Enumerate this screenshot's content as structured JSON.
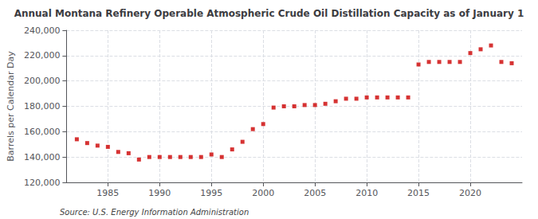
{
  "chart_data": {
    "type": "scatter",
    "title": "Annual Montana Refinery Operable Atmospheric Crude Oil Distillation Capacity as of January 1",
    "ylabel": "Barrels per Calendar Day",
    "annotations": [
      "Source: U.S. Energy Information Administration"
    ],
    "x": [
      1982,
      1983,
      1984,
      1985,
      1986,
      1987,
      1988,
      1989,
      1990,
      1991,
      1992,
      1993,
      1994,
      1995,
      1996,
      1997,
      1998,
      1999,
      2000,
      2001,
      2002,
      2003,
      2004,
      2005,
      2006,
      2007,
      2008,
      2009,
      2010,
      2011,
      2012,
      2013,
      2014,
      2015,
      2016,
      2017,
      2018,
      2019,
      2020,
      2021,
      2022,
      2023,
      2024
    ],
    "values": [
      154000,
      151000,
      149000,
      148000,
      144000,
      143000,
      138000,
      140000,
      140000,
      140000,
      140000,
      140000,
      140000,
      142000,
      140000,
      146000,
      152000,
      162000,
      166000,
      179000,
      180000,
      180000,
      181000,
      181000,
      182000,
      184000,
      186000,
      186000,
      187000,
      187000,
      187000,
      187000,
      187000,
      213000,
      215000,
      215000,
      215000,
      215000,
      222000,
      225000,
      228000,
      215000,
      214000
    ],
    "color": "#cc0000",
    "marker": "square",
    "xlim": [
      1981,
      2025
    ],
    "xticks": [
      1985,
      1990,
      1995,
      2000,
      2005,
      2010,
      2015,
      2020
    ],
    "ylim": [
      120000,
      240000
    ],
    "yticks": [
      {
        "value": 120000,
        "label": "120,000"
      },
      {
        "value": 140000,
        "label": "140,000"
      },
      {
        "value": 160000,
        "label": "160,000"
      },
      {
        "value": 180000,
        "label": "180,000"
      },
      {
        "value": 200000,
        "label": "200,000"
      },
      {
        "value": 220000,
        "label": "220,000"
      },
      {
        "value": 240000,
        "label": "240,000"
      }
    ],
    "grid": true
  }
}
